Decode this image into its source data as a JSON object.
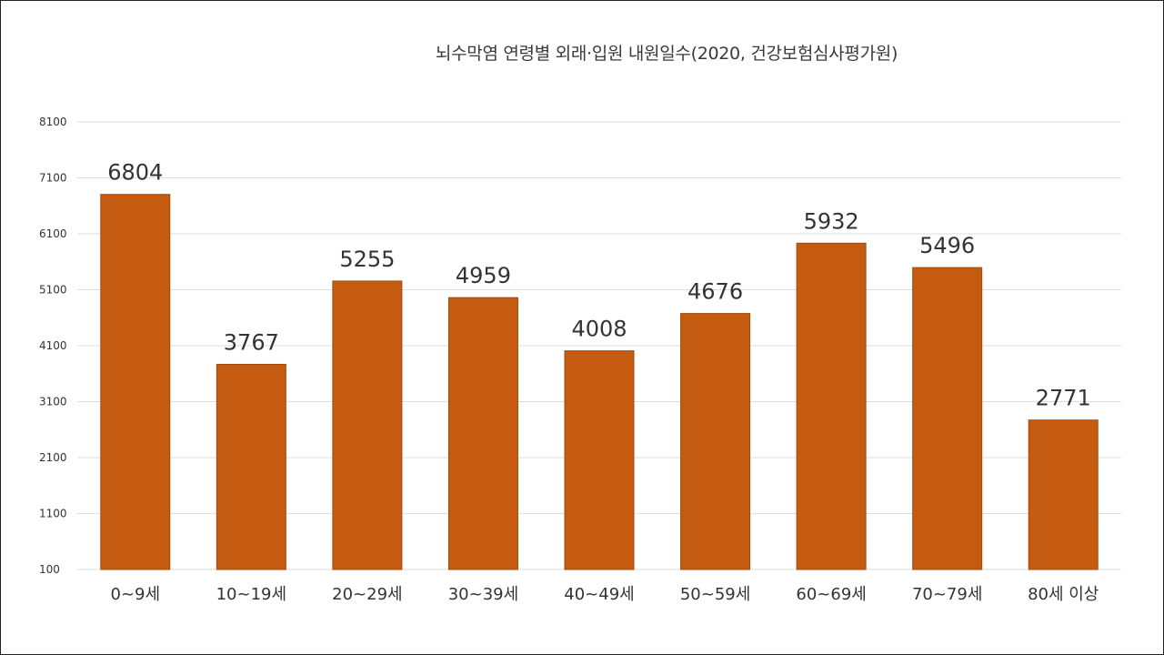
{
  "chart_data": {
    "type": "bar",
    "title": "뇌수막염 연령별 외래·입원 내원일수(2020, 건강보험심사평가원)",
    "xlabel": "",
    "ylabel": "",
    "categories": [
      "0~9세",
      "10~19세",
      "20~29세",
      "30~39세",
      "40~49세",
      "50~59세",
      "60~69세",
      "70~79세",
      "80세 이상"
    ],
    "values": [
      6804,
      3767,
      5255,
      4959,
      4008,
      4676,
      5932,
      5496,
      2771
    ],
    "ylim": [
      100,
      8100
    ],
    "yticks": [
      "100",
      "1100",
      "2100",
      "3100",
      "4100",
      "5100",
      "6100",
      "7100",
      "8100"
    ],
    "grid": true,
    "legend": "none",
    "bar_color": "#c55a11",
    "bar_edge_color": "#a04a0e"
  }
}
